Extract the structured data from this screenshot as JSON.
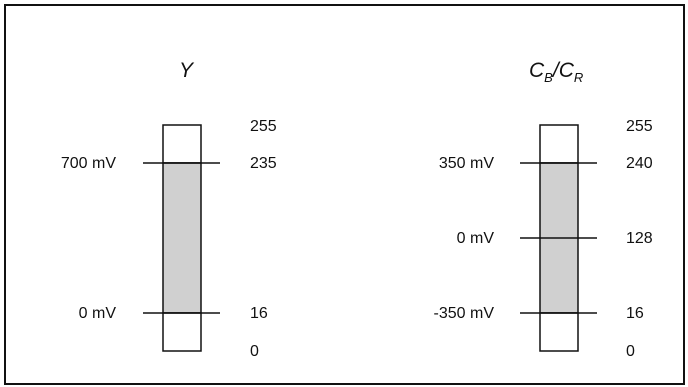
{
  "colors": {
    "border": "#111111",
    "fill": "#d0d0d0",
    "background": "#ffffff"
  },
  "luma": {
    "title": "Y",
    "left_labels": [
      "700 mV",
      "0 mV"
    ],
    "right_labels": [
      "255",
      "235",
      "16",
      "0"
    ]
  },
  "chroma": {
    "title_c": "C",
    "title_b": "B",
    "title_slash": "/",
    "title_c2": "C",
    "title_r": "R",
    "left_labels": [
      "350 mV",
      "0 mV",
      "-350 mV"
    ],
    "right_labels": [
      "255",
      "240",
      "128",
      "16",
      "0"
    ]
  }
}
